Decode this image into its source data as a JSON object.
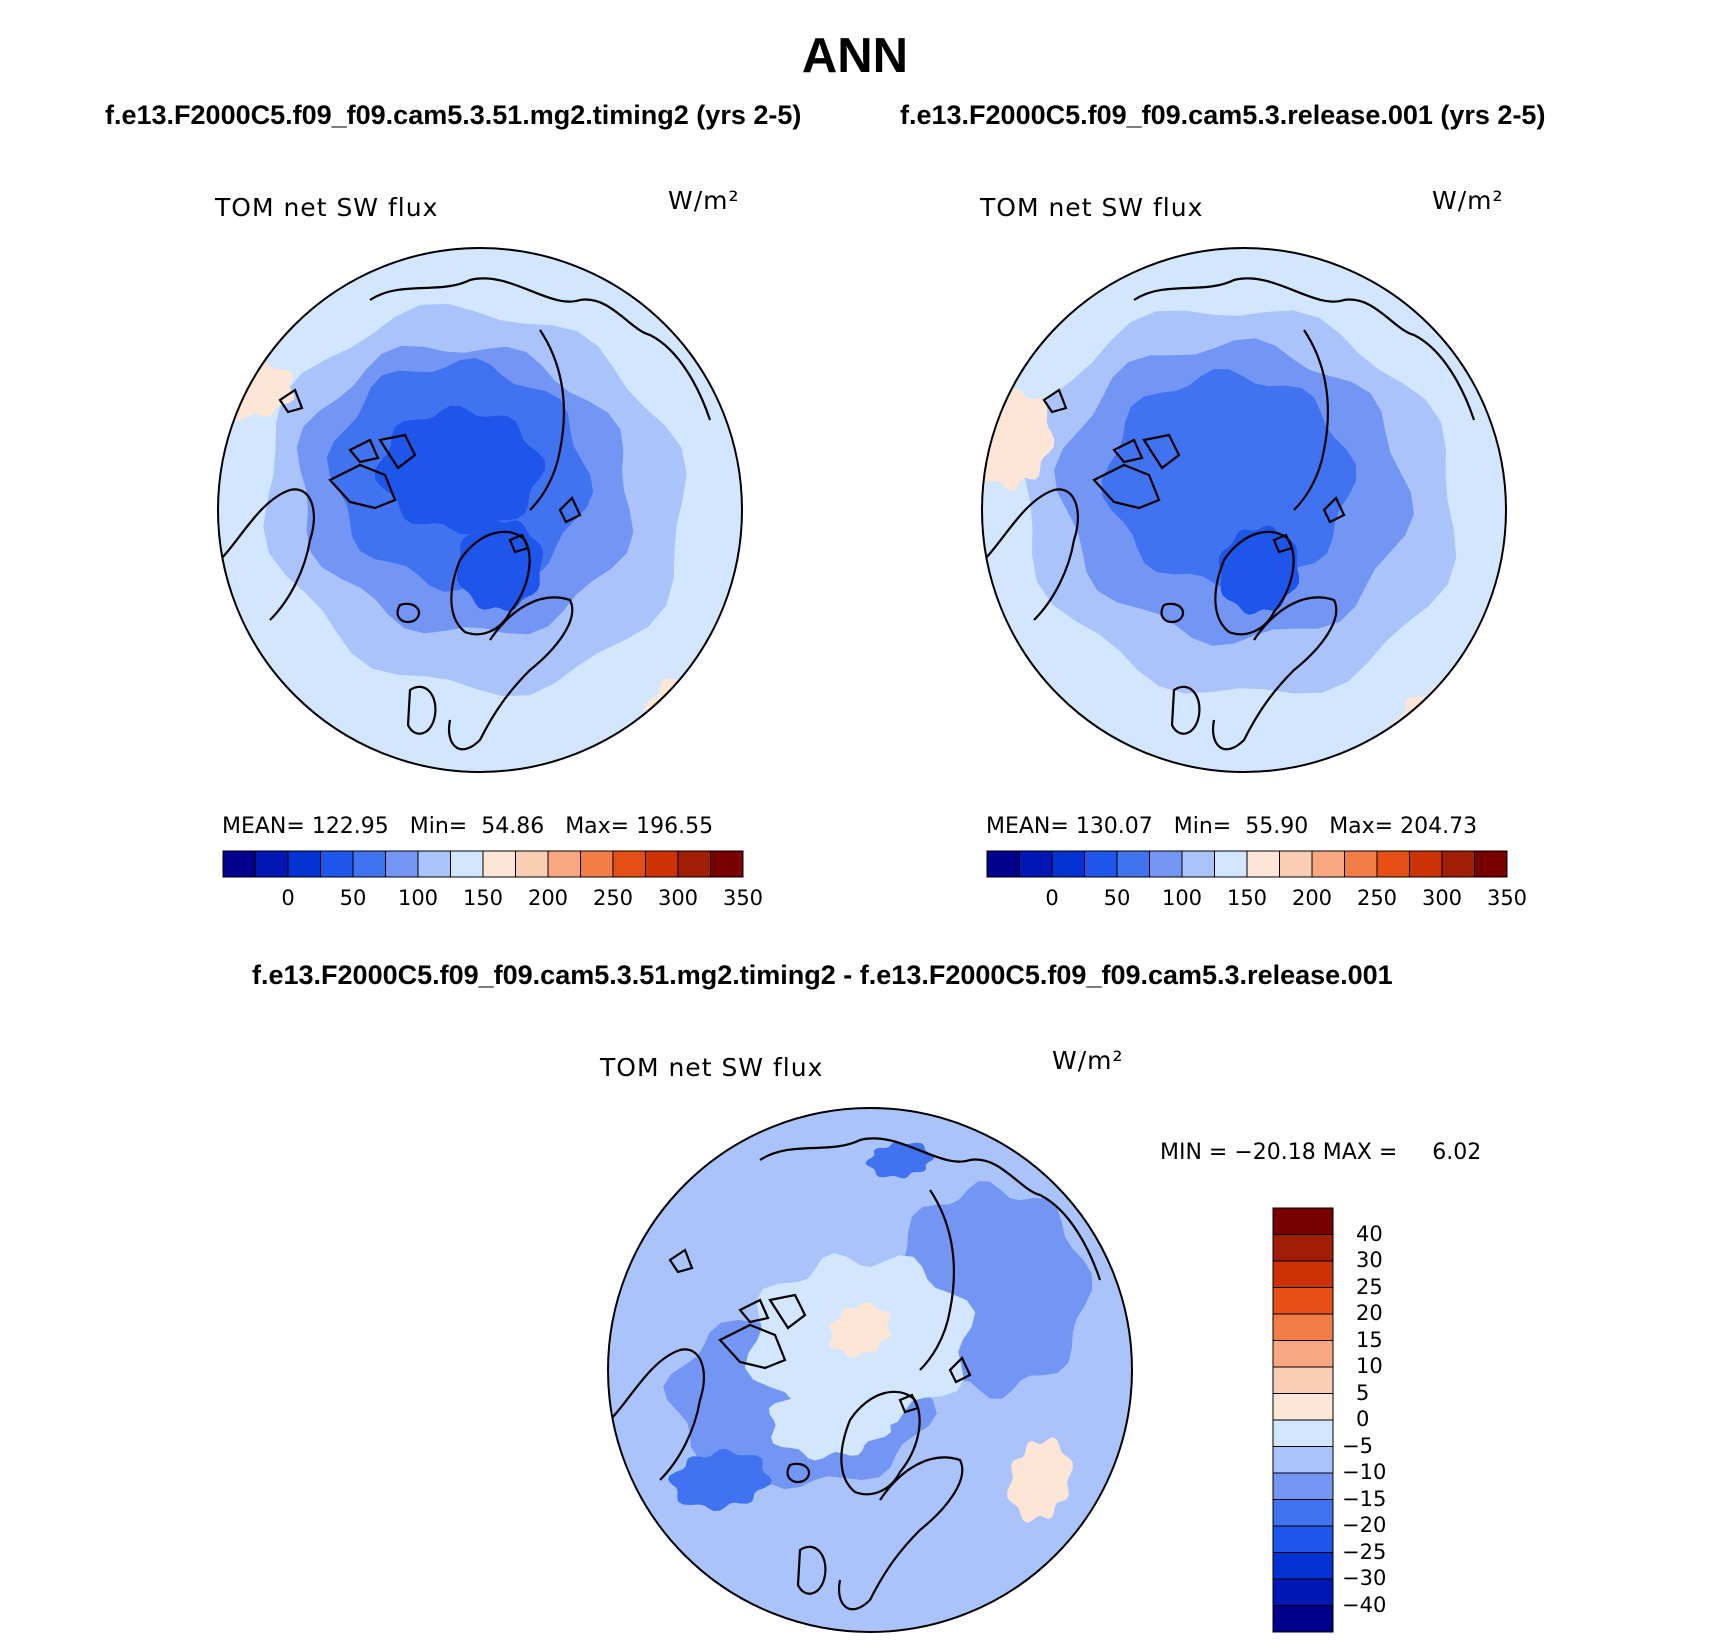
{
  "title": "ANN",
  "panels": [
    {
      "id": "test",
      "case_title": "f.e13.F2000C5.f09_f09.cam5.3.51.mg2.timing2 (yrs 2-5)",
      "variable": "TOM net SW flux",
      "units": "W/m²",
      "stats": "MEAN= 122.95   Min=  54.86   Max= 196.55",
      "mean": 122.95,
      "min": 54.86,
      "max": 196.55
    },
    {
      "id": "control",
      "case_title": "f.e13.F2000C5.f09_f09.cam5.3.release.001 (yrs 2-5)",
      "variable": "TOM net SW flux",
      "units": "W/m²",
      "stats": "MEAN= 130.07   Min=  55.90   Max= 204.73",
      "mean": 130.07,
      "min": 55.9,
      "max": 204.73
    }
  ],
  "difference": {
    "case_title": "f.e13.F2000C5.f09_f09.cam5.3.51.mg2.timing2 - f.e13.F2000C5.f09_f09.cam5.3.release.001",
    "variable": "TOM net SW flux",
    "units": "W/m²",
    "stats": "MIN = −20.18 MAX =     6.02",
    "min": -20.18,
    "max": 6.02
  },
  "colorbar_main": {
    "tick_labels": [
      "0",
      "50",
      "100",
      "150",
      "200",
      "250",
      "300",
      "350"
    ],
    "colors": [
      "#00008c",
      "#0017b4",
      "#0532d2",
      "#1e55ea",
      "#4173f0",
      "#7396f5",
      "#aac3fa",
      "#d2e6ff",
      "#fde6d5",
      "#facdb4",
      "#f8a782",
      "#f37d46",
      "#e65014",
      "#cd3205",
      "#a01e05",
      "#780000"
    ]
  },
  "colorbar_diff": {
    "tick_labels": [
      "40",
      "30",
      "25",
      "20",
      "15",
      "10",
      "5",
      "0",
      "−5",
      "−10",
      "−15",
      "−20",
      "−25",
      "−30",
      "−40"
    ],
    "colors": [
      "#780000",
      "#a01e05",
      "#cd3205",
      "#e65014",
      "#f37d46",
      "#f8a782",
      "#facdb4",
      "#fde6d5",
      "#d2e6ff",
      "#aac3fa",
      "#7396f5",
      "#4173f0",
      "#1e55ea",
      "#0532d2",
      "#0017b4",
      "#00008c"
    ]
  }
}
